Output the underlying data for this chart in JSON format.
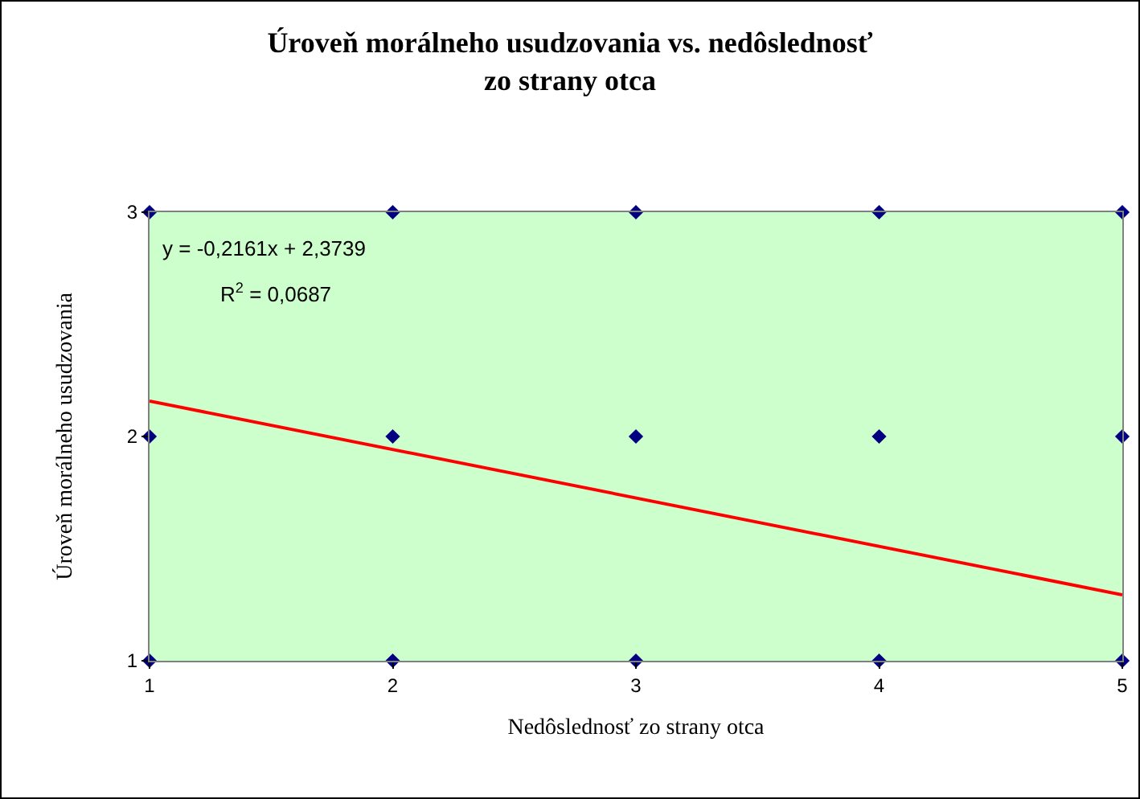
{
  "chart_data": {
    "type": "scatter",
    "title": "Úroveň morálneho usudzovania vs. nedôslednosť\nzo strany otca",
    "xlabel": "Nedôslednosť zo strany otca",
    "ylabel": "Úroveň morálneho usudzovania",
    "annotations": [
      "y = -0,2161x + 2,3739",
      "R$^{2}$ = 0,0687"
    ],
    "xlim": [
      1,
      5
    ],
    "xticks": [
      1,
      2,
      3,
      4,
      5
    ],
    "ylim": [
      1,
      3
    ],
    "yticks": [
      1,
      2,
      3
    ],
    "grid": false,
    "marker": "diamond",
    "series": [
      {
        "type": "scatter",
        "color": "#000080",
        "x": [
          1,
          1,
          1,
          2,
          2,
          2,
          3,
          3,
          3,
          4,
          4,
          4,
          5,
          5,
          5
        ],
        "values": [
          1,
          2,
          3,
          1,
          2,
          3,
          1,
          2,
          3,
          1,
          2,
          3,
          1,
          2,
          3
        ]
      },
      {
        "type": "line",
        "color": "#ff0000",
        "line_style": "solid",
        "marker": "none",
        "x": [
          1,
          5
        ],
        "values": [
          2.158,
          1.294
        ]
      }
    ]
  }
}
